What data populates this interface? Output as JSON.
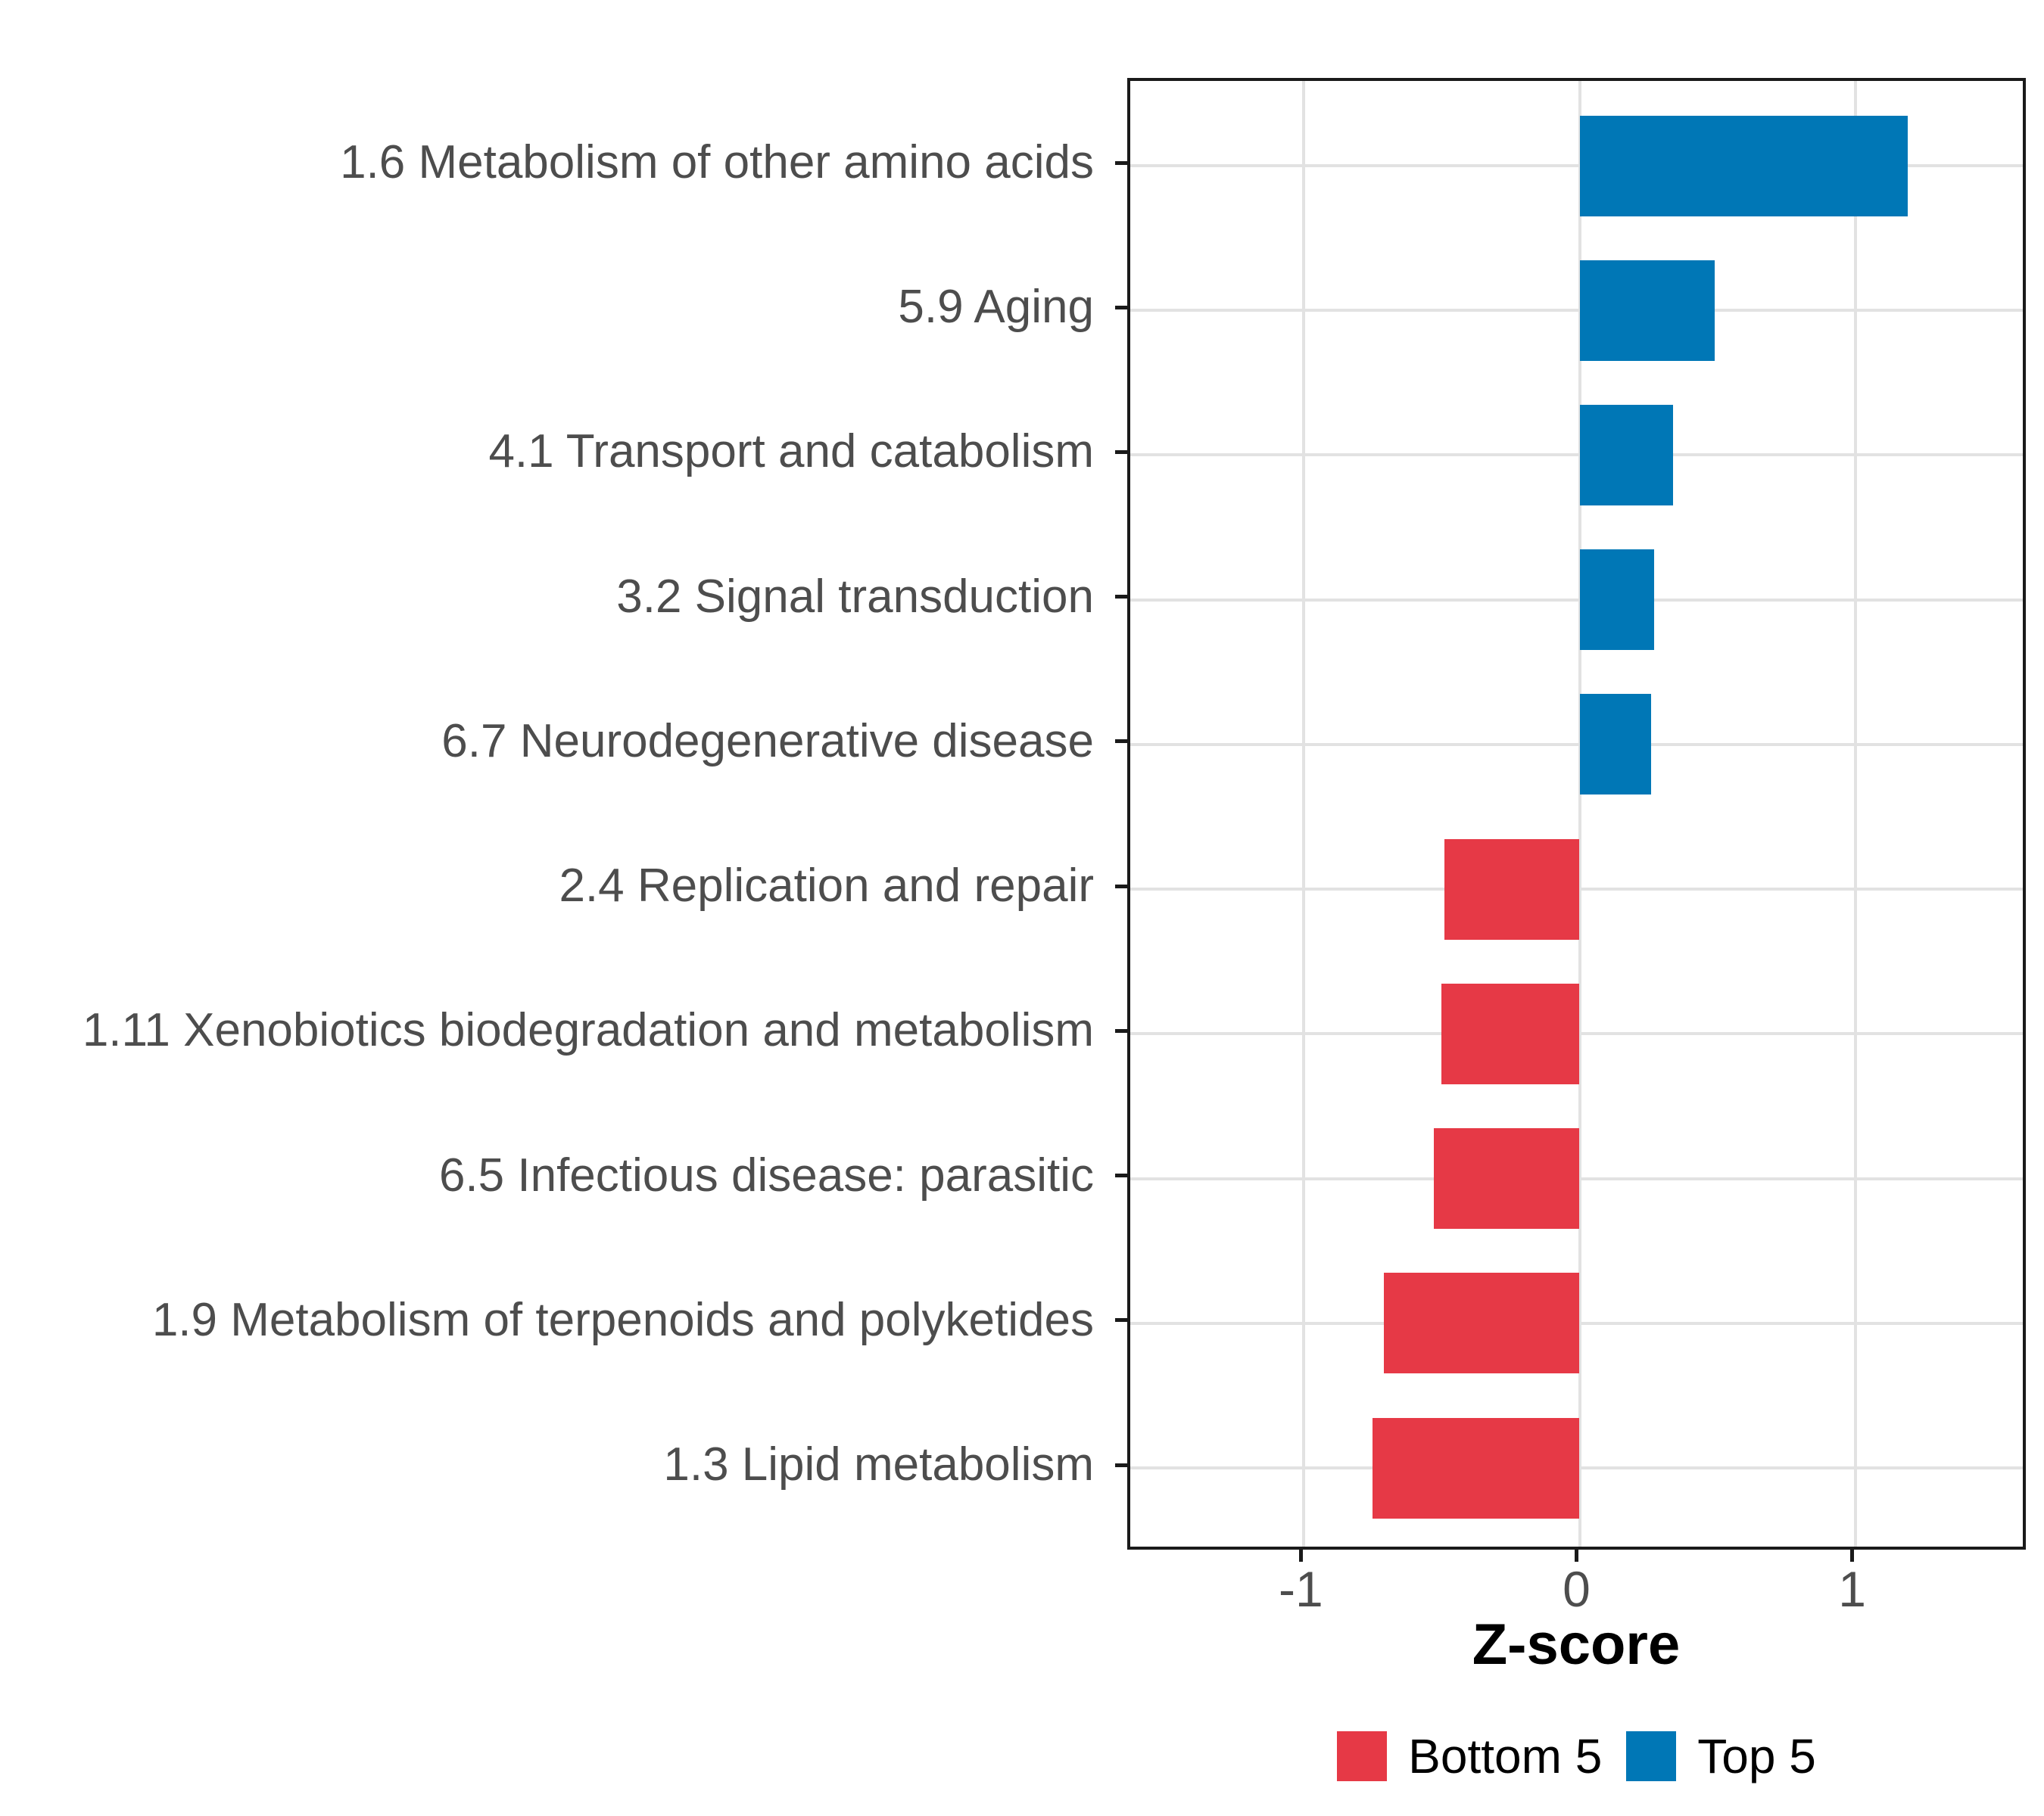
{
  "figure": {
    "background": "#ffffff",
    "panel_border_color": "#1a1a1a",
    "gridline_color": "#e2e2e2",
    "axis_text_color": "#4d4d4d",
    "tick_color": "#1a1a1a"
  },
  "chart_data": {
    "type": "bar",
    "orientation": "horizontal",
    "title": "",
    "xlabel": "Z-score",
    "ylabel": "",
    "xlim": [
      -1.63,
      1.63
    ],
    "x_ticks": [
      {
        "value": -1,
        "label": "-1"
      },
      {
        "value": 0,
        "label": "0"
      },
      {
        "value": 1,
        "label": "1"
      }
    ],
    "grid": "major-only",
    "bar_width_fraction": 0.7,
    "legend_position": "bottom",
    "bars": [
      {
        "category": "1.6 Metabolism of other amino acids",
        "value": 1.19,
        "group": "Top 5"
      },
      {
        "category": "5.9 Aging",
        "value": 0.49,
        "group": "Top 5"
      },
      {
        "category": "4.1 Transport and catabolism",
        "value": 0.34,
        "group": "Top 5"
      },
      {
        "category": "3.2 Signal transduction",
        "value": 0.27,
        "group": "Top 5"
      },
      {
        "category": "6.7 Neurodegenerative disease",
        "value": 0.26,
        "group": "Top 5"
      },
      {
        "category": "2.4 Replication and repair",
        "value": -0.49,
        "group": "Bottom 5"
      },
      {
        "category": "1.11 Xenobiotics biodegradation and metabolism",
        "value": -0.5,
        "group": "Bottom 5"
      },
      {
        "category": "6.5 Infectious disease: parasitic",
        "value": -0.53,
        "group": "Bottom 5"
      },
      {
        "category": "1.9 Metabolism of terpenoids and polyketides",
        "value": -0.71,
        "group": "Bottom 5"
      },
      {
        "category": "1.3 Lipid metabolism",
        "value": -0.75,
        "group": "Bottom 5"
      }
    ],
    "legend": [
      {
        "label": "Bottom 5",
        "color": "#e63946"
      },
      {
        "label": "Top 5",
        "color": "#0077b6"
      }
    ]
  }
}
